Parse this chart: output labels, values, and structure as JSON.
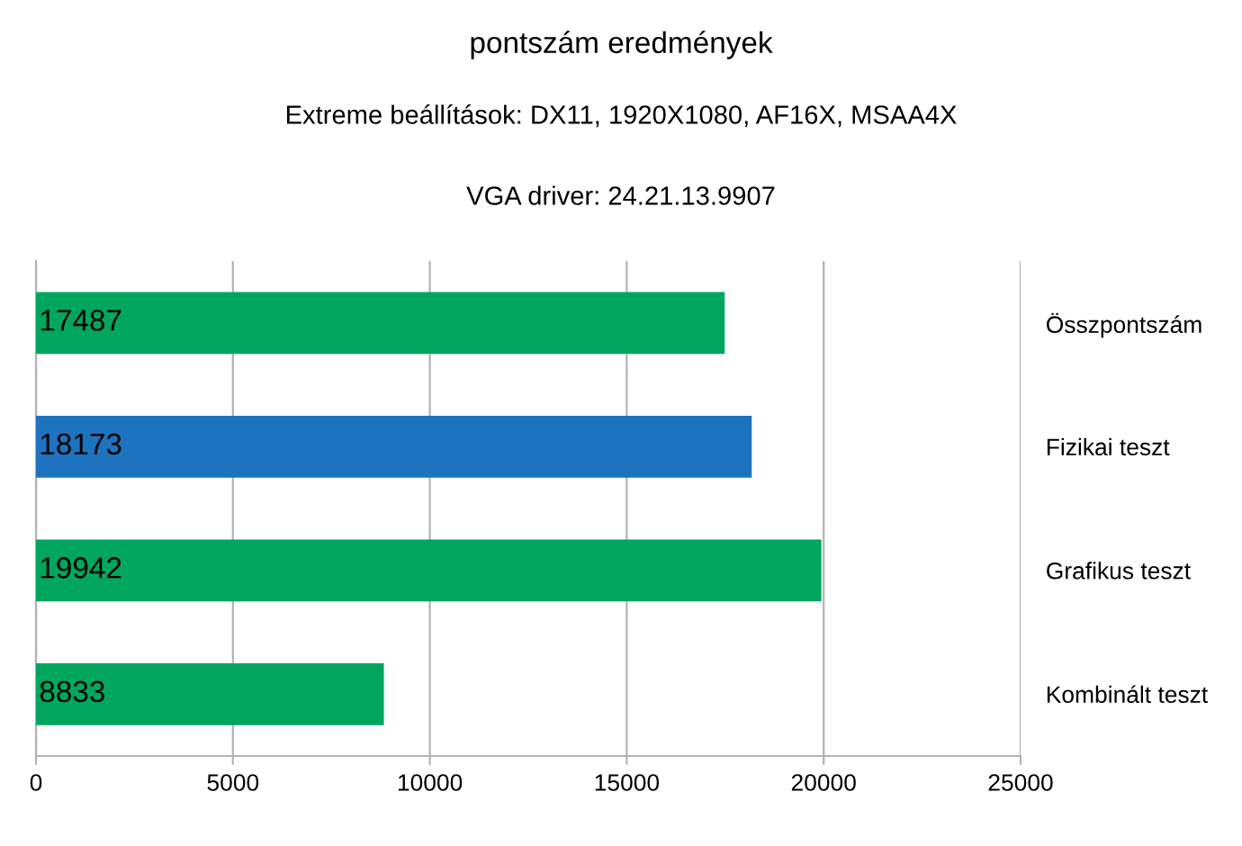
{
  "chart_data": {
    "type": "bar",
    "orientation": "horizontal",
    "title": "pontszám eredmények",
    "subtitle": "Extreme beállítások: DX11, 1920X1080, AF16X, MSAA4X",
    "annotations": [
      "VGA driver: 24.21.13.9907"
    ],
    "categories": [
      "Összpontszám",
      "Fizikai teszt",
      "Grafikus teszt",
      "Kombinált teszt"
    ],
    "values": [
      17487,
      18173,
      19942,
      8833
    ],
    "colors": [
      "#00a65d",
      "#1e73be",
      "#00a65d",
      "#00a65d"
    ],
    "xlim": [
      0,
      25000
    ],
    "xticks": [
      0,
      5000,
      10000,
      15000,
      20000,
      25000
    ],
    "grid": "x",
    "data_labels": true,
    "legend": false
  }
}
